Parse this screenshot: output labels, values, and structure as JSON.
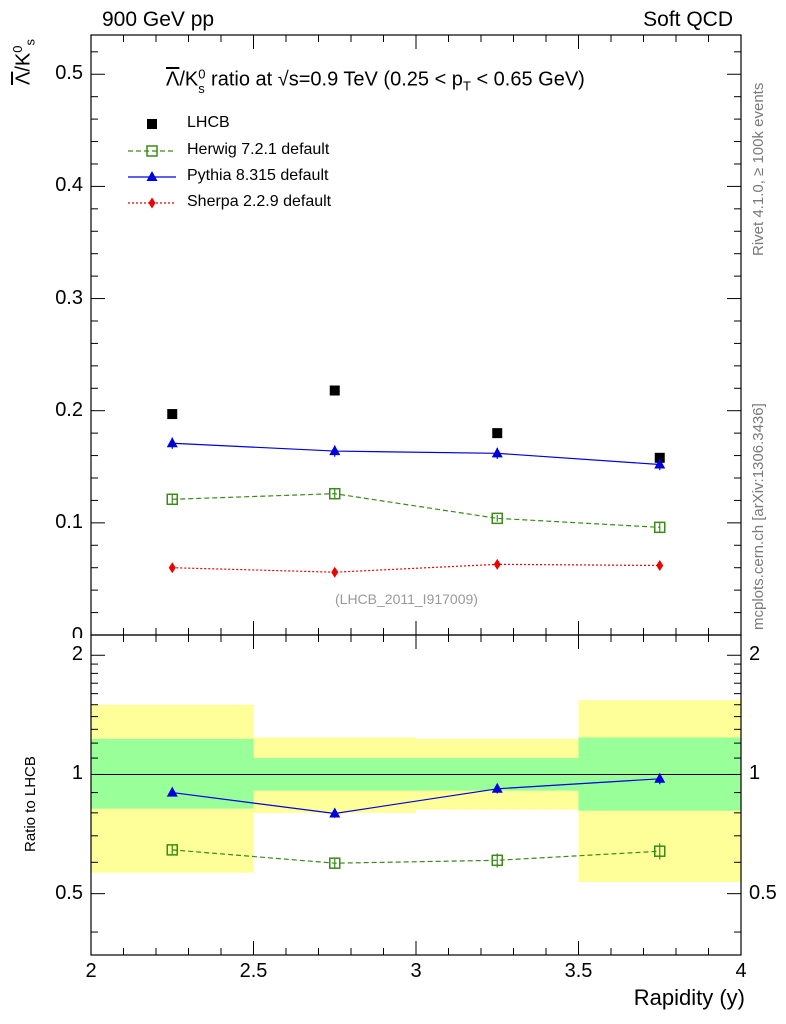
{
  "header": {
    "left": "900 GeV pp",
    "right": "Soft QCD"
  },
  "side_labels": {
    "rivet": "Rivet 4.1.0, ≥ 100k events",
    "mcplots": "mcplots.cern.ch [arXiv:1306.3436]"
  },
  "chart_data": {
    "type": "scatter",
    "title": "Λ̅/K⁰s ratio at √s=0.9 TeV (0.25 < pT < 0.65 GeV)",
    "title_parts": {
      "lead": "Λ",
      "ratio_mid": "/K",
      "sup": "0",
      "sub": "s",
      "rest": " ratio at √s=0.9 TeV (0.25 < p",
      "pt_sub": "T",
      "tail": " < 0.65 GeV)"
    },
    "ylabel": "Λ̅/K⁰s",
    "ylabel_parts": {
      "lead": "Λ",
      "mid": "/K",
      "sup": "0",
      "sub": "s"
    },
    "xlabel": "Rapidity (y)",
    "ratio_ylabel": "Ratio to LHCB",
    "analysis_id": "(LHCB_2011_I917009)",
    "xlim": [
      2,
      4
    ],
    "ylim": [
      0,
      0.535
    ],
    "ratio_ylim": [
      0.35,
      2.25
    ],
    "xticks": [
      2,
      2.5,
      3,
      3.5,
      4
    ],
    "xtick_labels": [
      "2",
      "2.5",
      "3",
      "3.5",
      "4"
    ],
    "yticks": [
      0,
      0.1,
      0.2,
      0.3,
      0.4,
      0.5
    ],
    "ytick_labels": [
      "0",
      "0.1",
      "0.2",
      "0.3",
      "0.4",
      "0.5"
    ],
    "ratio_yticks": [
      0.5,
      1,
      2
    ],
    "ratio_ytick_labels": [
      "0.5",
      "1",
      "2"
    ],
    "x": [
      2.25,
      2.75,
      3.25,
      3.75
    ],
    "bins": [
      [
        2.0,
        2.5
      ],
      [
        2.5,
        3.0
      ],
      [
        3.0,
        3.5
      ],
      [
        3.5,
        4.0
      ]
    ],
    "series": [
      {
        "name": "LHCB",
        "label": "LHCB",
        "color": "#000000",
        "marker": "square-filled",
        "line": "none",
        "values": [
          0.197,
          0.218,
          0.18,
          0.158
        ],
        "band_inner": [
          [
            0.82,
            1.23
          ],
          [
            0.91,
            1.1
          ],
          [
            0.91,
            1.1
          ],
          [
            0.81,
            1.24
          ]
        ],
        "band_outer": [
          [
            0.565,
            1.5
          ],
          [
            0.8,
            1.24
          ],
          [
            0.815,
            1.23
          ],
          [
            0.535,
            1.54
          ]
        ]
      },
      {
        "name": "Herwig 7.2.1 default",
        "label": "Herwig 7.2.1 default",
        "color": "#3a8a1a",
        "marker": "square-open",
        "line": "dashed",
        "values": [
          0.121,
          0.126,
          0.104,
          0.096
        ],
        "errors": [
          0.004,
          0.004,
          0.003,
          0.004
        ],
        "ratio": [
          0.645,
          0.597,
          0.607,
          0.64
        ],
        "ratio_errors": [
          0.02,
          0.02,
          0.025,
          0.03
        ]
      },
      {
        "name": "Pythia 8.315 default",
        "label": "Pythia 8.315 default",
        "color": "#0000dd",
        "marker": "triangle-filled",
        "line": "solid",
        "values": [
          0.171,
          0.164,
          0.162,
          0.152
        ],
        "errors": [
          0.005,
          0.005,
          0.005,
          0.005
        ],
        "ratio": [
          0.9,
          0.797,
          0.92,
          0.975
        ],
        "ratio_errors": [
          0.02,
          0.02,
          0.025,
          0.03
        ]
      },
      {
        "name": "Sherpa 2.2.9 default",
        "label": "Sherpa 2.2.9 default",
        "color": "#ee0000",
        "marker": "diamond-filled",
        "line": "dotted",
        "values": [
          0.06,
          0.056,
          0.063,
          0.062
        ],
        "errors": [
          0.001,
          0.001,
          0.001,
          0.001
        ]
      }
    ],
    "band_colors": {
      "inner": "#99ff99",
      "outer": "#ffff99"
    }
  }
}
